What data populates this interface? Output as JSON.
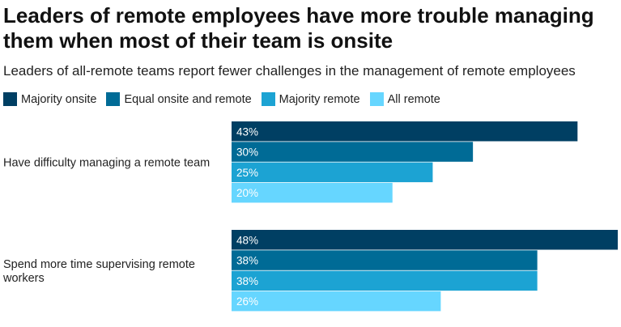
{
  "title": "Leaders of remote employees have more trouble managing them when most of their team is onsite",
  "subtitle": "Leaders of all-remote teams report fewer challenges in the management of remote employees",
  "colors": [
    "#003f63",
    "#006b96",
    "#1ca3d3",
    "#66d6ff"
  ],
  "chart_data": {
    "type": "bar",
    "orientation": "horizontal",
    "title": "Leaders of remote employees have more trouble managing them when most of their team is onsite",
    "subtitle": "Leaders of all-remote teams report fewer challenges in the management of remote employees",
    "categories": [
      [
        "Have difficulty managing a remote team"
      ],
      [
        "Spend more time supervising remote",
        "workers"
      ]
    ],
    "series": [
      {
        "name": "Majority onsite",
        "values": [
          43,
          48
        ],
        "labels": [
          "43%",
          "48%"
        ]
      },
      {
        "name": "Equal onsite and remote",
        "values": [
          30,
          38
        ],
        "labels": [
          "30%",
          "38%"
        ]
      },
      {
        "name": "Majority remote",
        "values": [
          25,
          38
        ],
        "labels": [
          "25%",
          "38%"
        ]
      },
      {
        "name": "All remote",
        "values": [
          20,
          26
        ],
        "labels": [
          "20%",
          "26%"
        ]
      }
    ],
    "xlim": [
      0,
      48
    ],
    "unit": "%",
    "legend_position": "top-left",
    "grid": false
  }
}
